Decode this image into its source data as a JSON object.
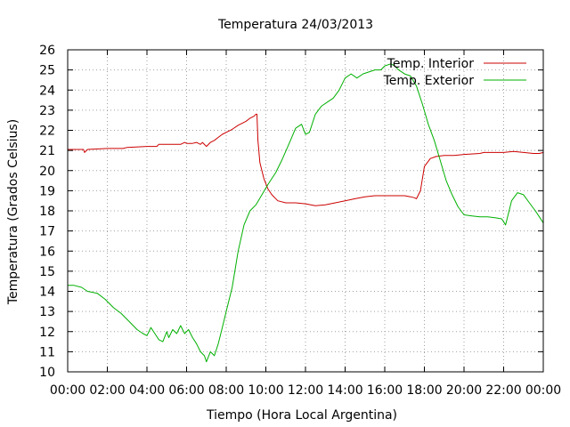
{
  "chart_data": {
    "type": "line",
    "title": "Temperatura 24/03/2013",
    "xlabel": "Tiempo (Hora Local Argentina)",
    "ylabel": "Temperatura (Grados Celsius)",
    "xlim": [
      0,
      24
    ],
    "ylim": [
      10,
      26
    ],
    "x_tick_labels": [
      "00:00",
      "02:00",
      "04:00",
      "06:00",
      "08:00",
      "10:00",
      "12:00",
      "14:00",
      "16:00",
      "18:00",
      "20:00",
      "22:00",
      "00:00"
    ],
    "y_tick_labels": [
      "10",
      "11",
      "12",
      "13",
      "14",
      "15",
      "16",
      "17",
      "18",
      "19",
      "20",
      "21",
      "22",
      "23",
      "24",
      "25",
      "26"
    ],
    "grid": true,
    "legend_position": "top-right",
    "series": [
      {
        "name": "Temp. Interior",
        "color": "#cc0000",
        "x": [
          0,
          0.5,
          0.8,
          0.85,
          1.0,
          2.0,
          2.8,
          3.0,
          4.0,
          4.5,
          4.6,
          5.0,
          5.5,
          5.7,
          5.9,
          6.0,
          6.3,
          6.5,
          6.7,
          6.8,
          7.0,
          7.2,
          7.4,
          7.6,
          7.8,
          8.0,
          8.3,
          8.6,
          9.0,
          9.2,
          9.4,
          9.5,
          9.55,
          9.6,
          9.7,
          9.9,
          10.1,
          10.3,
          10.6,
          11.0,
          11.5,
          12.0,
          12.5,
          13.0,
          13.5,
          14.0,
          14.5,
          15.0,
          15.5,
          16.0,
          16.5,
          17.0,
          17.3,
          17.5,
          17.6,
          17.8,
          18.0,
          18.3,
          18.6,
          19.0,
          19.5,
          20.0,
          20.8,
          21.0,
          22.0,
          22.5,
          23.0,
          23.5,
          23.8,
          24.0
        ],
        "y": [
          21.05,
          21.05,
          21.05,
          20.9,
          21.05,
          21.1,
          21.1,
          21.15,
          21.2,
          21.2,
          21.3,
          21.3,
          21.3,
          21.3,
          21.4,
          21.35,
          21.35,
          21.4,
          21.3,
          21.4,
          21.2,
          21.4,
          21.5,
          21.65,
          21.8,
          21.9,
          22.05,
          22.25,
          22.45,
          22.6,
          22.7,
          22.8,
          22.8,
          21.5,
          20.4,
          19.6,
          19.1,
          18.8,
          18.5,
          18.4,
          18.4,
          18.35,
          18.25,
          18.3,
          18.4,
          18.5,
          18.6,
          18.7,
          18.75,
          18.75,
          18.75,
          18.75,
          18.7,
          18.65,
          18.6,
          19.0,
          20.2,
          20.6,
          20.7,
          20.75,
          20.75,
          20.8,
          20.85,
          20.9,
          20.9,
          20.95,
          20.9,
          20.85,
          20.85,
          20.9
        ]
      },
      {
        "name": "Temp. Exterior",
        "color": "#00b000",
        "x": [
          0,
          0.3,
          0.7,
          1.0,
          1.5,
          1.9,
          2.3,
          2.7,
          3.1,
          3.5,
          3.8,
          4.0,
          4.2,
          4.4,
          4.6,
          4.8,
          5.0,
          5.1,
          5.3,
          5.5,
          5.7,
          5.9,
          6.1,
          6.3,
          6.5,
          6.7,
          6.9,
          7.0,
          7.2,
          7.4,
          7.6,
          7.8,
          8.0,
          8.3,
          8.6,
          8.9,
          9.2,
          9.5,
          9.8,
          10.1,
          10.5,
          10.8,
          11.2,
          11.5,
          11.8,
          12.0,
          12.2,
          12.5,
          12.8,
          13.1,
          13.4,
          13.7,
          14.0,
          14.3,
          14.6,
          14.9,
          15.2,
          15.5,
          15.8,
          16.0,
          16.3,
          16.5,
          16.7,
          17.0,
          17.3,
          17.6,
          17.9,
          18.2,
          18.5,
          18.8,
          19.1,
          19.4,
          19.7,
          20.0,
          20.4,
          20.8,
          21.2,
          21.6,
          21.9,
          22.1,
          22.4,
          22.7,
          23.0,
          23.3,
          23.6,
          23.8,
          24.0
        ],
        "y": [
          14.3,
          14.3,
          14.2,
          14.0,
          13.9,
          13.6,
          13.2,
          12.9,
          12.5,
          12.1,
          11.9,
          11.8,
          12.2,
          11.9,
          11.6,
          11.5,
          12.0,
          11.7,
          12.1,
          11.9,
          12.3,
          11.9,
          12.1,
          11.7,
          11.4,
          11.0,
          10.8,
          10.5,
          11.0,
          10.8,
          11.4,
          12.2,
          13.0,
          14.2,
          16.0,
          17.3,
          18.0,
          18.3,
          18.8,
          19.3,
          19.9,
          20.5,
          21.4,
          22.1,
          22.3,
          21.8,
          21.9,
          22.8,
          23.2,
          23.4,
          23.6,
          24.0,
          24.6,
          24.8,
          24.6,
          24.8,
          24.9,
          25.0,
          25.0,
          25.2,
          25.3,
          25.2,
          25.0,
          24.8,
          24.7,
          24.2,
          23.3,
          22.3,
          21.5,
          20.5,
          19.5,
          18.8,
          18.2,
          17.8,
          17.75,
          17.7,
          17.7,
          17.65,
          17.6,
          17.3,
          18.5,
          18.9,
          18.8,
          18.4,
          18.0,
          17.7,
          17.4
        ]
      }
    ]
  }
}
